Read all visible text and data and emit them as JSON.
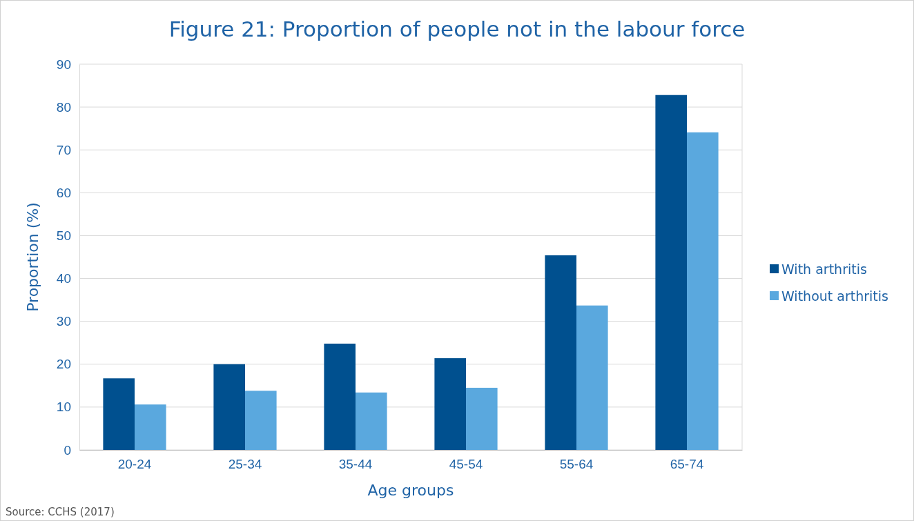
{
  "chart_data": {
    "type": "bar",
    "title": "Figure 21: Proportion of people not in the labour force",
    "xlabel": "Age groups",
    "ylabel": "Proportion (%)",
    "categories": [
      "20-24",
      "25-34",
      "35-44",
      "45-54",
      "55-64",
      "65-74"
    ],
    "series": [
      {
        "name": "With arthritis",
        "color": "#00508f",
        "values": [
          16.7,
          20.0,
          24.8,
          21.4,
          45.4,
          82.8
        ]
      },
      {
        "name": "Without arthritis",
        "color": "#5aa8de",
        "values": [
          10.6,
          13.8,
          13.4,
          14.5,
          33.7,
          74.1
        ]
      }
    ],
    "ylim": [
      0,
      90
    ],
    "yticks": [
      0,
      10,
      20,
      30,
      40,
      50,
      60,
      70,
      80,
      90
    ],
    "grid": "y",
    "legend": "right",
    "annotations": [
      "Source: CCHS (2017)"
    ]
  }
}
